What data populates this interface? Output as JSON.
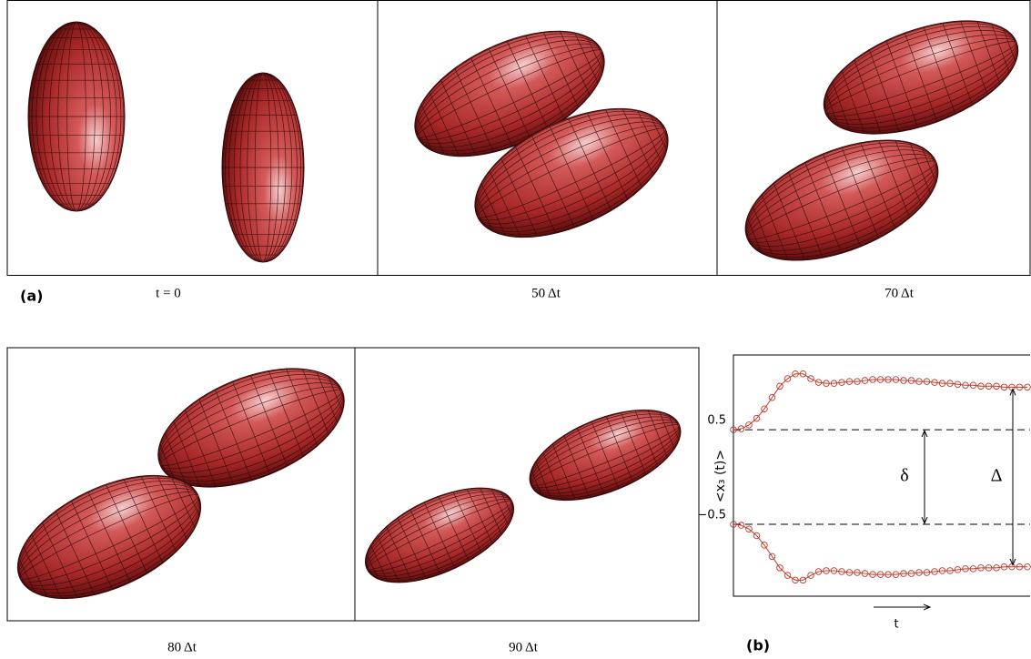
{
  "figure": {
    "captions": [
      "t = 0",
      "50 Δt",
      "70 Δt",
      "80 Δt",
      "90 Δt"
    ],
    "label": "(a)"
  },
  "chart_data": {
    "type": "line",
    "label": "(b)",
    "ylabel": "<x₃ (t)>",
    "xlabel": "t",
    "ylim": [
      -1.26,
      1.29
    ],
    "yticks": [
      {
        "value": 0.5,
        "label": "0.5"
      },
      {
        "value": -0.5,
        "label": "−0.5"
      }
    ],
    "annotations": [
      "δ",
      "Δ"
    ],
    "series": [
      {
        "color": "#c0392b",
        "values": [
          0.5,
          0.51,
          0.55,
          0.62,
          0.72,
          0.84,
          0.96,
          1.04,
          1.09,
          1.09,
          1.04,
          1.0,
          0.99,
          0.99,
          1.0,
          1.01,
          1.01,
          1.02,
          1.03,
          1.03,
          1.03,
          1.03,
          1.02,
          1.02,
          1.01,
          1.01,
          1.0,
          0.99,
          0.99,
          0.98,
          0.97,
          0.97,
          0.96,
          0.96,
          0.96,
          0.95,
          0.95,
          0.95,
          0.95
        ]
      },
      {
        "color": "#c0392b",
        "values": [
          -0.5,
          -0.51,
          -0.55,
          -0.62,
          -0.72,
          -0.84,
          -0.96,
          -1.04,
          -1.09,
          -1.09,
          -1.04,
          -1.0,
          -0.99,
          -0.99,
          -1.0,
          -1.01,
          -1.01,
          -1.02,
          -1.03,
          -1.03,
          -1.03,
          -1.03,
          -1.02,
          -1.02,
          -1.01,
          -1.01,
          -1.0,
          -0.99,
          -0.99,
          -0.98,
          -0.97,
          -0.97,
          -0.96,
          -0.96,
          -0.96,
          -0.95,
          -0.95,
          -0.95,
          -0.95
        ]
      }
    ]
  }
}
